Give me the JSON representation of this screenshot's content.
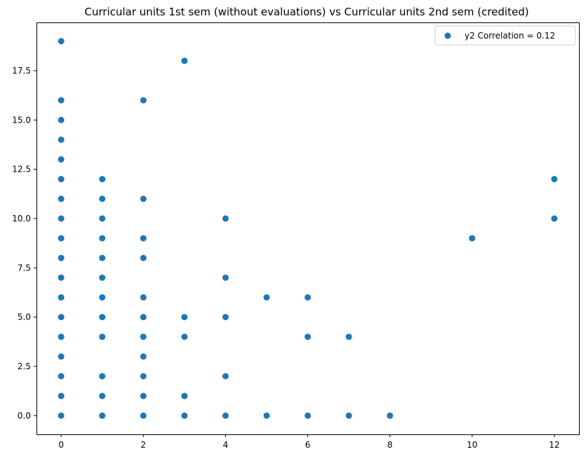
{
  "chart_data": {
    "type": "scatter",
    "title": "Curricular units 1st sem (without evaluations) vs Curricular units 2nd sem (credited)",
    "xlabel": "",
    "ylabel": "",
    "xlim": [
      -0.6,
      12.6
    ],
    "ylim": [
      -0.95,
      19.95
    ],
    "x_ticks": [
      0,
      2,
      4,
      6,
      8,
      10,
      12
    ],
    "x_tick_labels": [
      "0",
      "2",
      "4",
      "6",
      "8",
      "10",
      "12"
    ],
    "y_ticks": [
      0,
      2.5,
      5,
      7.5,
      10,
      12.5,
      15,
      17.5
    ],
    "y_tick_labels": [
      "0.0",
      "2.5",
      "5.0",
      "7.5",
      "10.0",
      "12.5",
      "15.0",
      "17.5"
    ],
    "grid": false,
    "legend_position": "upper right",
    "series": [
      {
        "name": "y2 Correlation = 0.12",
        "color": "#1f77b4",
        "points": [
          [
            0,
            0
          ],
          [
            0,
            1
          ],
          [
            0,
            2
          ],
          [
            0,
            3
          ],
          [
            0,
            4
          ],
          [
            0,
            5
          ],
          [
            0,
            6
          ],
          [
            0,
            7
          ],
          [
            0,
            8
          ],
          [
            0,
            9
          ],
          [
            0,
            10
          ],
          [
            0,
            11
          ],
          [
            0,
            12
          ],
          [
            0,
            13
          ],
          [
            0,
            14
          ],
          [
            0,
            15
          ],
          [
            0,
            16
          ],
          [
            0,
            19
          ],
          [
            1,
            0
          ],
          [
            1,
            1
          ],
          [
            1,
            2
          ],
          [
            1,
            4
          ],
          [
            1,
            5
          ],
          [
            1,
            6
          ],
          [
            1,
            7
          ],
          [
            1,
            8
          ],
          [
            1,
            9
          ],
          [
            1,
            10
          ],
          [
            1,
            11
          ],
          [
            1,
            12
          ],
          [
            2,
            0
          ],
          [
            2,
            1
          ],
          [
            2,
            2
          ],
          [
            2,
            3
          ],
          [
            2,
            4
          ],
          [
            2,
            5
          ],
          [
            2,
            6
          ],
          [
            2,
            8
          ],
          [
            2,
            9
          ],
          [
            2,
            11
          ],
          [
            2,
            16
          ],
          [
            3,
            0
          ],
          [
            3,
            1
          ],
          [
            3,
            4
          ],
          [
            3,
            5
          ],
          [
            3,
            18
          ],
          [
            4,
            0
          ],
          [
            4,
            2
          ],
          [
            4,
            5
          ],
          [
            4,
            7
          ],
          [
            4,
            10
          ],
          [
            5,
            0
          ],
          [
            5,
            6
          ],
          [
            6,
            0
          ],
          [
            6,
            4
          ],
          [
            6,
            6
          ],
          [
            7,
            0
          ],
          [
            7,
            4
          ],
          [
            8,
            0
          ],
          [
            10,
            9
          ],
          [
            12,
            10
          ],
          [
            12,
            12
          ]
        ]
      }
    ]
  }
}
